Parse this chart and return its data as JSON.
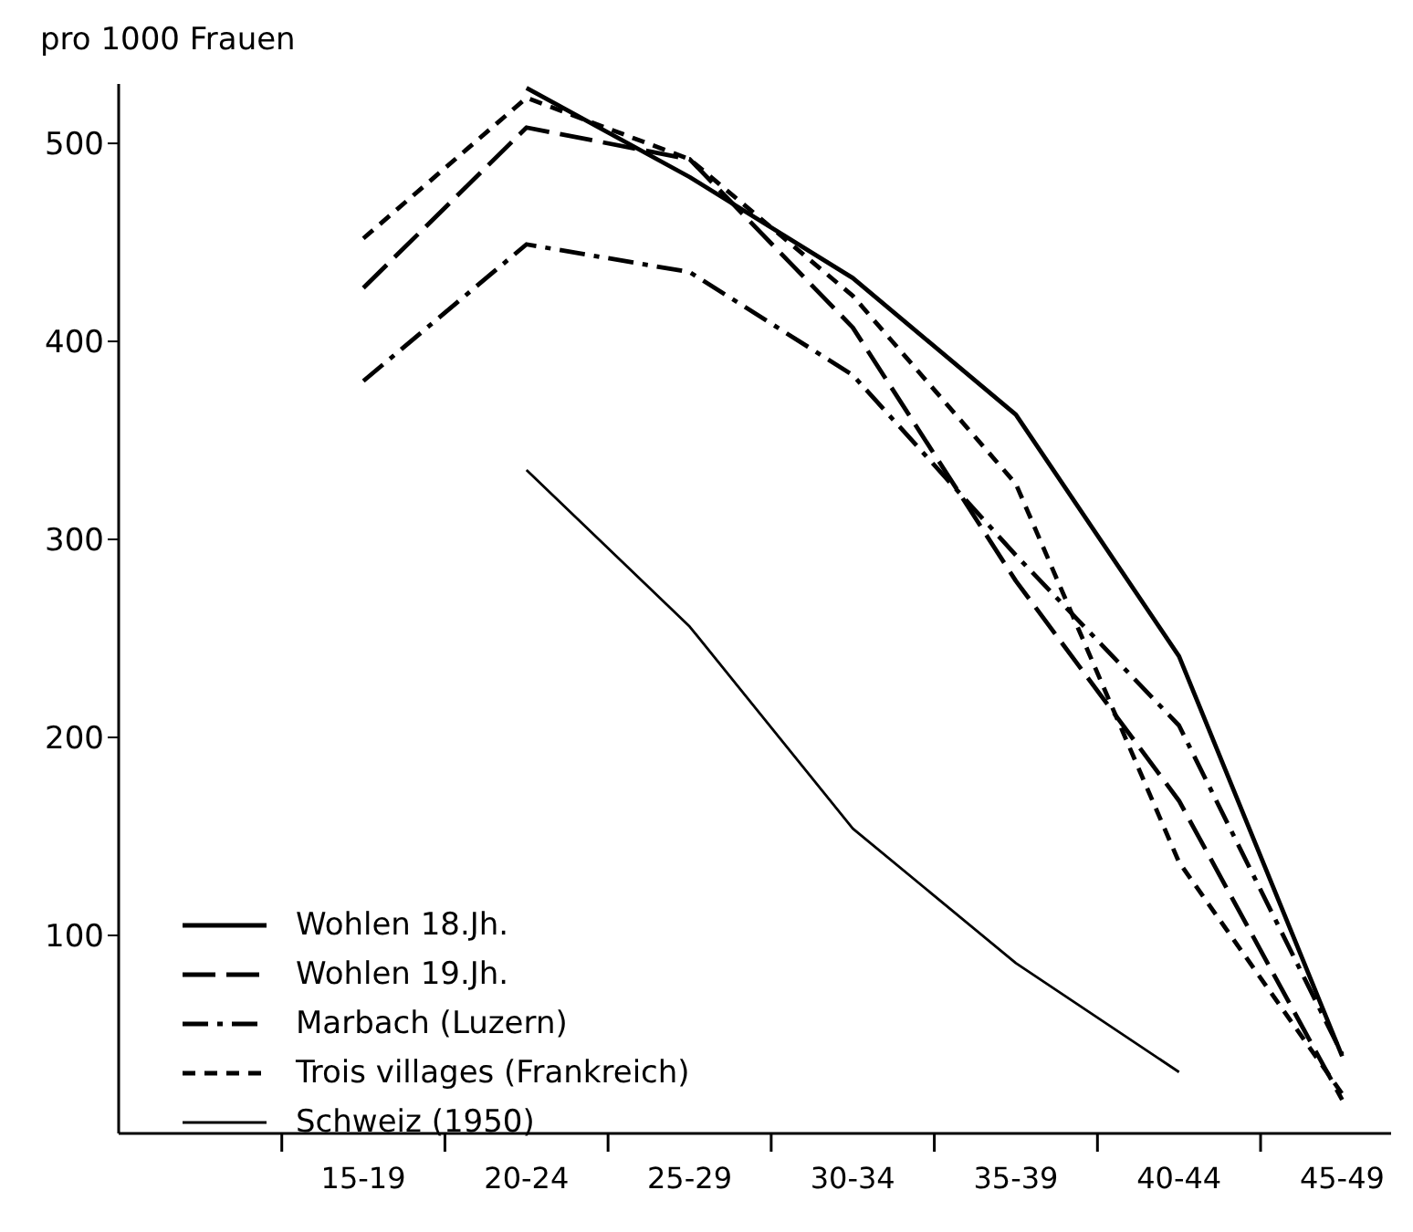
{
  "chart_data": {
    "type": "line",
    "ylabel": "pro 1000 Frauen",
    "categories": [
      "15-19",
      "20-24",
      "25-29",
      "30-34",
      "35-39",
      "40-44",
      "45-49"
    ],
    "ylim": [
      0,
      530
    ],
    "yticks": [
      100,
      200,
      300,
      400,
      500
    ],
    "grid": false,
    "legend": "bottom left",
    "marker": "none",
    "series": [
      {
        "name": "Wohlen 18.Jh.",
        "color": "#000000",
        "line_style": "solid",
        "values": [
          null,
          528,
          483,
          432,
          363,
          241,
          39
        ]
      },
      {
        "name": "Wohlen 19.Jh.",
        "color": "#000000",
        "line_style": "longdash",
        "values": [
          427,
          508,
          492,
          407,
          279,
          168,
          17
        ]
      },
      {
        "name": "Marbach (Luzern)",
        "color": "#000000",
        "line_style": "dashdot",
        "values": [
          380,
          449,
          435,
          383,
          292,
          206,
          40
        ]
      },
      {
        "name": "Trois villages (Frankreich)",
        "color": "#000000",
        "line_style": "dashed",
        "values": [
          452,
          523,
          492,
          423,
          328,
          137,
          20
        ]
      },
      {
        "name": "Schweiz (1950)",
        "color": "#000000",
        "line_style": "solid",
        "values": [
          null,
          335,
          256,
          154,
          86,
          31,
          null
        ]
      }
    ]
  }
}
